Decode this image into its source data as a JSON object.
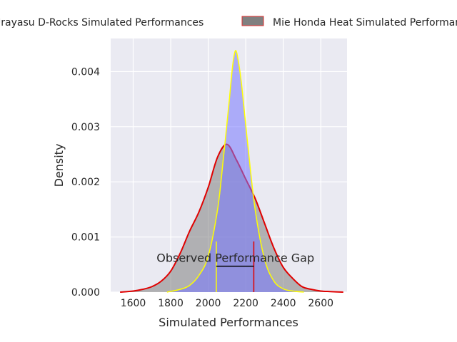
{
  "chart_data": {
    "type": "area",
    "title": "",
    "xlabel": "Simulated Performances",
    "ylabel": "Density",
    "xlim": [
      1480,
      2740
    ],
    "ylim": [
      0,
      0.0046
    ],
    "xticks": [
      1600,
      1800,
      2000,
      2200,
      2400,
      2600
    ],
    "yticks": [
      0.0,
      0.001,
      0.002,
      0.003,
      0.004
    ],
    "ytick_labels": [
      "0.000",
      "0.001",
      "0.002",
      "0.003",
      "0.004"
    ],
    "grid": true,
    "legend": {
      "placement": "top-center",
      "entries": [
        {
          "label": "Urayasu D-Rocks Simulated Performances",
          "fill": "#7a7a9a",
          "edge": "#e03030"
        },
        {
          "label": "Mie Honda Heat Simulated Performances",
          "fill": "#808080",
          "edge": "#e03030"
        }
      ]
    },
    "series": [
      {
        "name": "Urayasu D-Rocks Simulated Performances",
        "line_color": "#e00000",
        "fill_color": "#808080",
        "x": [
          1530,
          1600,
          1650,
          1700,
          1750,
          1800,
          1850,
          1900,
          1950,
          2000,
          2050,
          2100,
          2150,
          2200,
          2250,
          2300,
          2350,
          2400,
          2450,
          2500,
          2550,
          2600,
          2650,
          2720
        ],
        "y": [
          0.0,
          2e-05,
          5e-05,
          0.0001,
          0.0002,
          0.00038,
          0.0007,
          0.0011,
          0.00145,
          0.0019,
          0.00245,
          0.00268,
          0.0024,
          0.00205,
          0.0017,
          0.00125,
          0.0008,
          0.00045,
          0.00025,
          0.0001,
          5e-05,
          2e-05,
          1e-05,
          0.0
        ]
      },
      {
        "name": "Mie Honda Heat Simulated Performances",
        "line_color": "#ffff00",
        "fill_color": "#7777ff",
        "x": [
          1780,
          1850,
          1900,
          1950,
          2000,
          2050,
          2080,
          2110,
          2130,
          2145,
          2160,
          2180,
          2210,
          2250,
          2300,
          2350,
          2400,
          2450,
          2510
        ],
        "y": [
          0.0,
          5e-05,
          0.00012,
          0.0003,
          0.00065,
          0.0015,
          0.0024,
          0.0034,
          0.0041,
          0.00438,
          0.0042,
          0.0037,
          0.0027,
          0.0015,
          0.0006,
          0.0002,
          6e-05,
          2e-05,
          0.0
        ]
      }
    ],
    "annotations": [
      {
        "type": "text",
        "text": "Observed Performance Gap",
        "x": 2145,
        "y": 0.00055
      },
      {
        "type": "vline",
        "x": 2043,
        "y0": 0,
        "y1": 0.00092,
        "color": "#ffff00"
      },
      {
        "type": "vline",
        "x": 2243,
        "y0": 0,
        "y1": 0.00092,
        "color": "#e00000"
      },
      {
        "type": "hline",
        "x0": 2043,
        "x1": 2243,
        "y": 0.00047,
        "color": "#000000"
      }
    ]
  }
}
